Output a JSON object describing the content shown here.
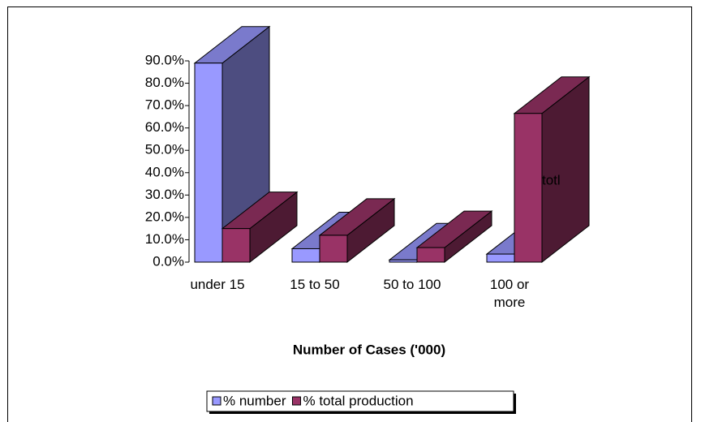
{
  "chart_data": {
    "type": "bar3d",
    "xlabel": "Number of Cases ('000)",
    "categories": [
      "under 15",
      "15 to 50",
      "50 to 100",
      "100 or more"
    ],
    "series": [
      {
        "name": "% number",
        "color": "#9999ff",
        "values": [
          89,
          6,
          1,
          3.6
        ]
      },
      {
        "name": "% total production",
        "color": "#993366",
        "values": [
          15,
          12,
          6.5,
          66.5
        ]
      }
    ],
    "ylim": [
      0,
      90
    ],
    "yticks": [
      {
        "value": 0,
        "label": "0.0%"
      },
      {
        "value": 10,
        "label": "10.0%"
      },
      {
        "value": 20,
        "label": "20.0%"
      },
      {
        "value": 30,
        "label": "30.0%"
      },
      {
        "value": 40,
        "label": "40.0%"
      },
      {
        "value": 50,
        "label": "50.0%"
      },
      {
        "value": 60,
        "label": "60.0%"
      },
      {
        "value": 70,
        "label": "70.0%"
      },
      {
        "value": 80,
        "label": "80.0%"
      },
      {
        "value": 90,
        "label": "90.0%"
      }
    ],
    "annotation": "totl",
    "grid": false,
    "legend": "bottom"
  }
}
